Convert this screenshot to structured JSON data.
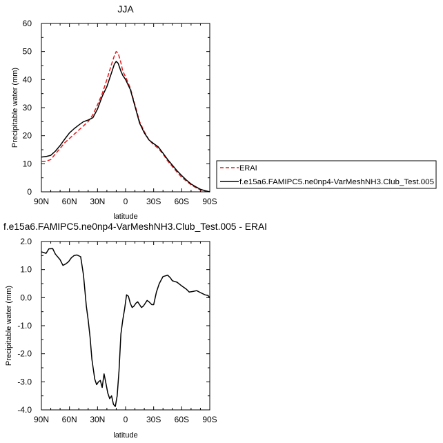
{
  "chart_data": [
    {
      "type": "line",
      "title": "JJA",
      "xlabel": "latitude",
      "ylabel": "Precipitable water (mm)",
      "xlim": [
        90,
        -90
      ],
      "ylim": [
        0,
        60
      ],
      "xticks": [
        90,
        60,
        30,
        0,
        -30,
        -60,
        -90
      ],
      "xtick_labels": [
        "90N",
        "60N",
        "30N",
        "0",
        "30S",
        "60S",
        "90S"
      ],
      "yticks": [
        0,
        10,
        20,
        30,
        40,
        50,
        60
      ],
      "ytick_labels": [
        "0",
        "10",
        "20",
        "30",
        "40",
        "50",
        "60"
      ],
      "legend_position": "right",
      "series": [
        {
          "name": "ERAI",
          "color": "#e41a1c",
          "style": "dashed",
          "x": [
            90,
            85,
            80,
            75,
            70,
            65,
            60,
            55,
            50,
            45,
            40,
            35,
            30,
            25,
            20,
            15,
            12,
            10,
            8,
            5,
            3,
            0,
            -5,
            -10,
            -15,
            -20,
            -25,
            -30,
            -35,
            -40,
            -45,
            -50,
            -55,
            -60,
            -65,
            -70,
            -75,
            -80,
            -85,
            -90
          ],
          "values": [
            10.8,
            10.9,
            11.5,
            13.5,
            15.5,
            17.5,
            19.0,
            20.5,
            22.0,
            23.5,
            25.0,
            27.5,
            31.0,
            35.0,
            40.0,
            45.5,
            48.5,
            50.0,
            49.5,
            46.0,
            43.0,
            41.0,
            37.0,
            31.0,
            25.0,
            21.5,
            18.5,
            16.8,
            15.5,
            13.5,
            11.0,
            9.0,
            7.0,
            5.2,
            3.8,
            2.5,
            1.5,
            0.7,
            0.3,
            0.0
          ]
        },
        {
          "name": "f.e15a6.FAMIPC5.ne0np4-VarMeshNH3.Club_Test.005",
          "color": "#000000",
          "style": "solid",
          "x": [
            90,
            85,
            80,
            75,
            70,
            65,
            60,
            55,
            50,
            45,
            40,
            35,
            30,
            25,
            20,
            15,
            12,
            10,
            8,
            5,
            3,
            0,
            -5,
            -10,
            -15,
            -20,
            -25,
            -30,
            -35,
            -40,
            -45,
            -50,
            -55,
            -60,
            -65,
            -70,
            -75,
            -80,
            -85,
            -90
          ],
          "values": [
            12.4,
            12.6,
            13.0,
            14.5,
            16.5,
            18.8,
            21.0,
            22.5,
            23.8,
            25.0,
            25.6,
            26.4,
            29.5,
            34.0,
            37.5,
            42.5,
            45.5,
            46.5,
            45.8,
            43.0,
            41.5,
            40.0,
            36.5,
            30.5,
            24.5,
            21.0,
            18.5,
            17.2,
            16.0,
            13.8,
            11.5,
            9.5,
            7.5,
            5.8,
            4.2,
            2.8,
            1.8,
            0.9,
            0.4,
            0.0
          ]
        }
      ]
    },
    {
      "type": "line",
      "title": "f.e15a6.FAMIPC5.ne0np4-VarMeshNH3.Club_Test.005 - ERAI",
      "xlabel": "latitude",
      "ylabel": "Precipitable water (mm)",
      "xlim": [
        90,
        -90
      ],
      "ylim": [
        -4,
        2
      ],
      "xticks": [
        90,
        60,
        30,
        0,
        -30,
        -60,
        -90
      ],
      "xtick_labels": [
        "90N",
        "60N",
        "30N",
        "0",
        "30S",
        "60S",
        "90S"
      ],
      "yticks": [
        -4,
        -3,
        -2,
        -1,
        0,
        1,
        2
      ],
      "ytick_labels": [
        "-4.0",
        "-3.0",
        "-2.0",
        "-1.0",
        "0.0",
        "1.0",
        "2.0"
      ],
      "series": [
        {
          "color": "#000000",
          "style": "solid",
          "x": [
            90,
            85,
            82,
            78,
            75,
            70,
            67,
            64,
            61,
            58,
            55,
            52,
            48,
            45,
            42,
            40,
            38,
            36,
            33,
            31,
            29,
            27,
            25,
            23,
            21,
            19,
            17,
            15,
            13,
            11,
            9,
            7,
            5,
            3,
            1,
            -1,
            -3,
            -5,
            -7,
            -9,
            -11,
            -13,
            -15,
            -17,
            -19,
            -21,
            -23,
            -25,
            -28,
            -30,
            -33,
            -36,
            -40,
            -45,
            -48,
            -50,
            -55,
            -60,
            -65,
            -68,
            -72,
            -76,
            -80,
            -85,
            -88,
            -90
          ],
          "values": [
            1.63,
            1.58,
            1.74,
            1.75,
            1.55,
            1.35,
            1.15,
            1.2,
            1.28,
            1.42,
            1.5,
            1.52,
            1.46,
            0.8,
            -0.3,
            -0.8,
            -1.4,
            -2.2,
            -2.9,
            -3.1,
            -3.0,
            -2.95,
            -3.2,
            -2.72,
            -3.05,
            -3.4,
            -3.6,
            -3.5,
            -3.8,
            -3.88,
            -3.5,
            -2.6,
            -1.3,
            -0.8,
            -0.4,
            0.1,
            0.05,
            -0.2,
            -0.35,
            -0.3,
            -0.2,
            -0.15,
            -0.25,
            -0.35,
            -0.3,
            -0.2,
            -0.1,
            -0.15,
            -0.25,
            -0.25,
            0.2,
            0.5,
            0.75,
            0.8,
            0.7,
            0.6,
            0.55,
            0.42,
            0.3,
            0.2,
            0.22,
            0.25,
            0.18,
            0.1,
            0.08,
            0.0
          ]
        }
      ]
    }
  ]
}
